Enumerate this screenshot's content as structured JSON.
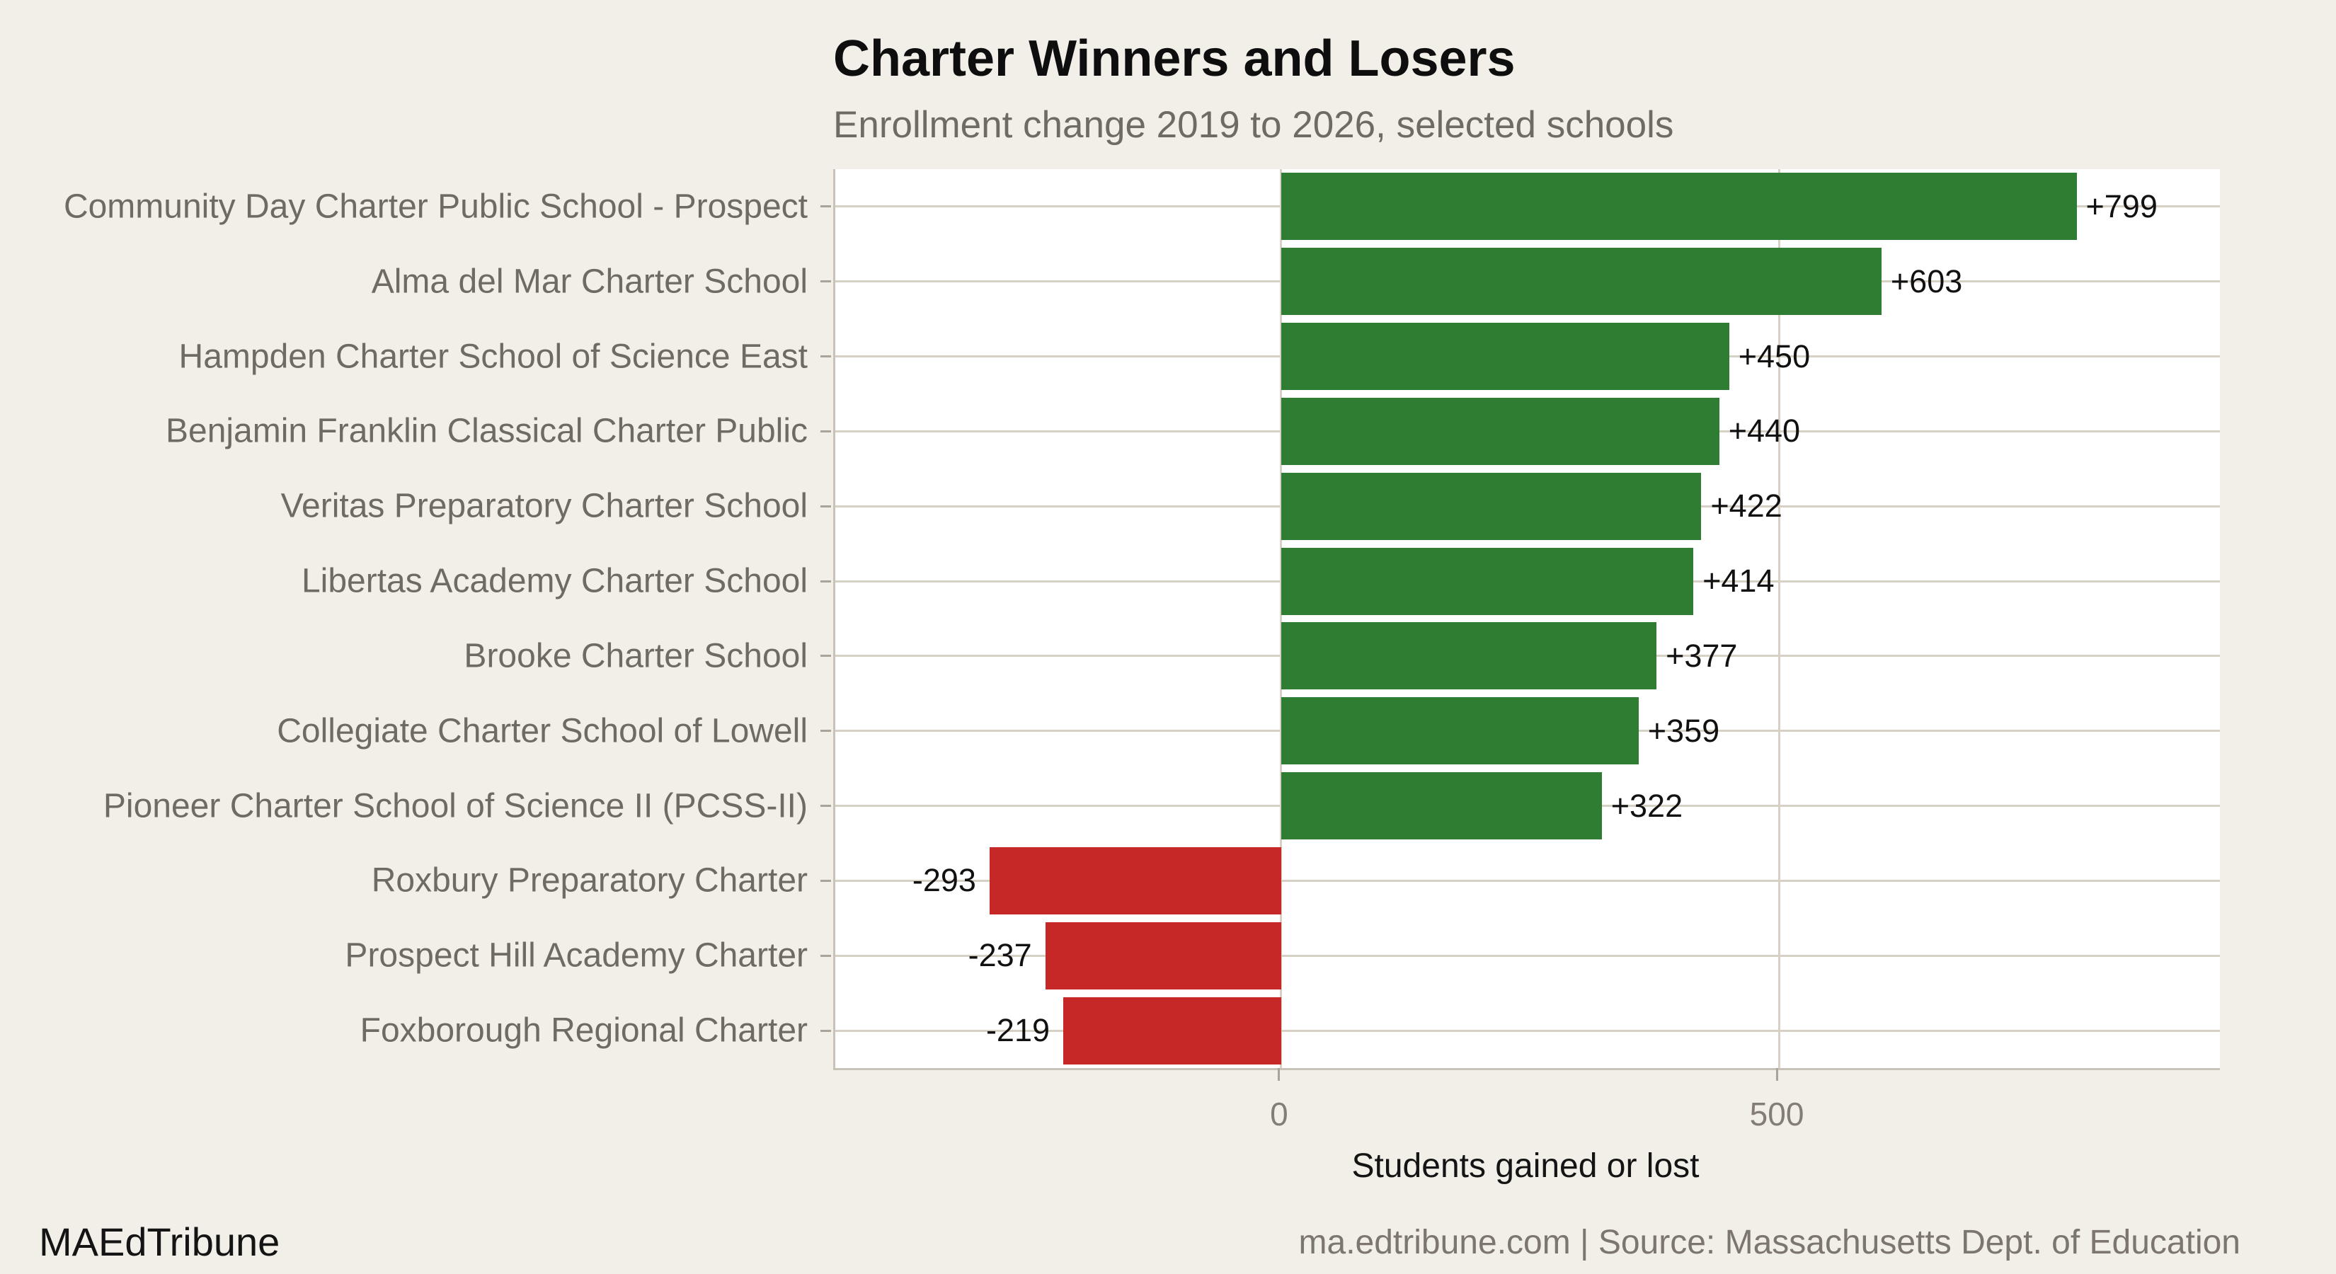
{
  "title": "Charter Winners and Losers",
  "subtitle": "Enrollment change 2019 to 2026, selected schools",
  "footer": {
    "left": "MAEdTribune",
    "right": "ma.edtribune.com | Source: Massachusetts Dept. of Education"
  },
  "chart_data": {
    "type": "bar",
    "orientation": "horizontal",
    "title": "Charter Winners and Losers",
    "subtitle": "Enrollment change 2019 to 2026, selected schools",
    "xlabel": "Students gained or lost",
    "categories": [
      "Community Day Charter Public School - Prospect",
      "Alma del Mar Charter School",
      "Hampden Charter School of Science East",
      "Benjamin Franklin Classical Charter Public",
      "Veritas Preparatory Charter School",
      "Libertas Academy Charter School",
      "Brooke Charter School",
      "Collegiate Charter School of Lowell",
      "Pioneer Charter School of Science II (PCSS-II)",
      "Roxbury Preparatory Charter",
      "Prospect Hill Academy Charter",
      "Foxborough Regional Charter"
    ],
    "values": [
      799,
      603,
      450,
      440,
      422,
      414,
      377,
      359,
      322,
      -293,
      -237,
      -219
    ],
    "value_labels": [
      "+799",
      "+603",
      "+450",
      "+440",
      "+422",
      "+414",
      "+377",
      "+359",
      "+322",
      "-293",
      "-237",
      "-219"
    ],
    "x_ticks": [
      0,
      500
    ],
    "x_tick_labels": [
      "0",
      "500"
    ],
    "xlim": [
      -448,
      943
    ],
    "grid": "major",
    "legend": "none",
    "colors": {
      "background": "#f2efe8",
      "panel": "#ffffff",
      "grid": "#d6d0c5",
      "axis_line": "#c8c2b8",
      "tick": "#a9a39a",
      "positive_bar": "#2f7d32",
      "negative_bar": "#c62828",
      "label_text": "#111111",
      "axis_text": "#6e6a64"
    }
  }
}
